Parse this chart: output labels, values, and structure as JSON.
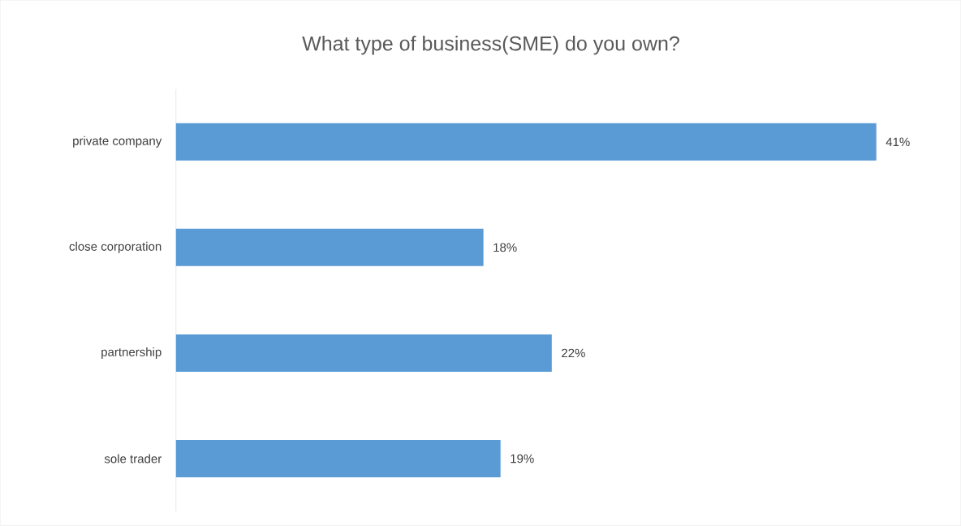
{
  "chart_data": {
    "type": "bar",
    "orientation": "horizontal",
    "title": "What type of business(SME) do you own?",
    "categories": [
      "private company",
      "close corporation",
      "partnership",
      "sole trader"
    ],
    "values": [
      41,
      18,
      22,
      19
    ],
    "value_labels": [
      "41%",
      "18%",
      "22%",
      "19%"
    ],
    "color": "#5b9bd5"
  }
}
